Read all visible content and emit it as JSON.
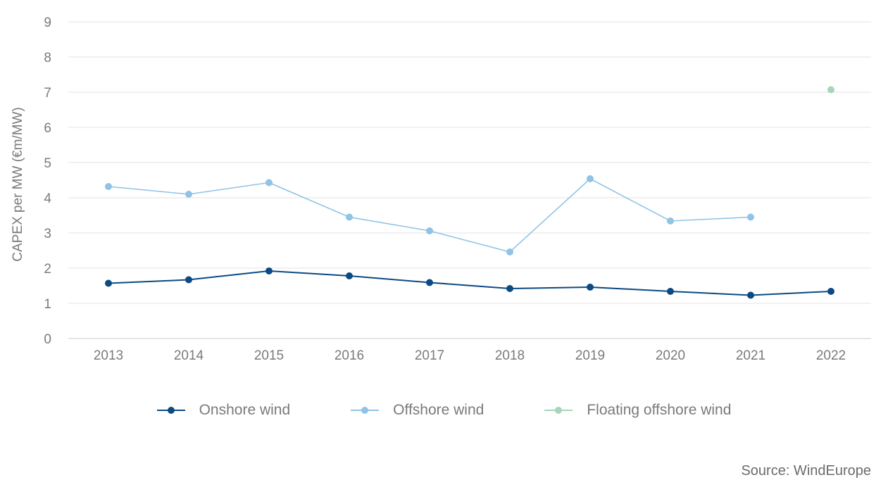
{
  "chart_data": {
    "type": "line",
    "x": [
      "2013",
      "2014",
      "2015",
      "2016",
      "2017",
      "2018",
      "2019",
      "2020",
      "2021",
      "2022"
    ],
    "ylabel": "CAPEX per MW (€m/MW)",
    "xlabel": "",
    "ylim": [
      0,
      9
    ],
    "yticks": [
      0,
      1,
      2,
      3,
      4,
      5,
      6,
      7,
      8,
      9
    ],
    "grid": "horizontal",
    "legend_position": "bottom",
    "series": [
      {
        "name": "Onshore wind",
        "color": "#0b4a83",
        "values": [
          1.57,
          1.67,
          1.92,
          1.78,
          1.59,
          1.42,
          1.46,
          1.34,
          1.23,
          1.34
        ]
      },
      {
        "name": "Offshore wind",
        "color": "#90c3e6",
        "values": [
          4.32,
          4.1,
          4.43,
          3.45,
          3.06,
          2.46,
          4.54,
          3.34,
          3.45,
          null
        ]
      },
      {
        "name": "Floating offshore wind",
        "color": "#a6d6b8",
        "values": [
          null,
          null,
          null,
          null,
          null,
          null,
          null,
          null,
          null,
          7.07
        ]
      }
    ]
  },
  "source": "Source: WindEurope"
}
